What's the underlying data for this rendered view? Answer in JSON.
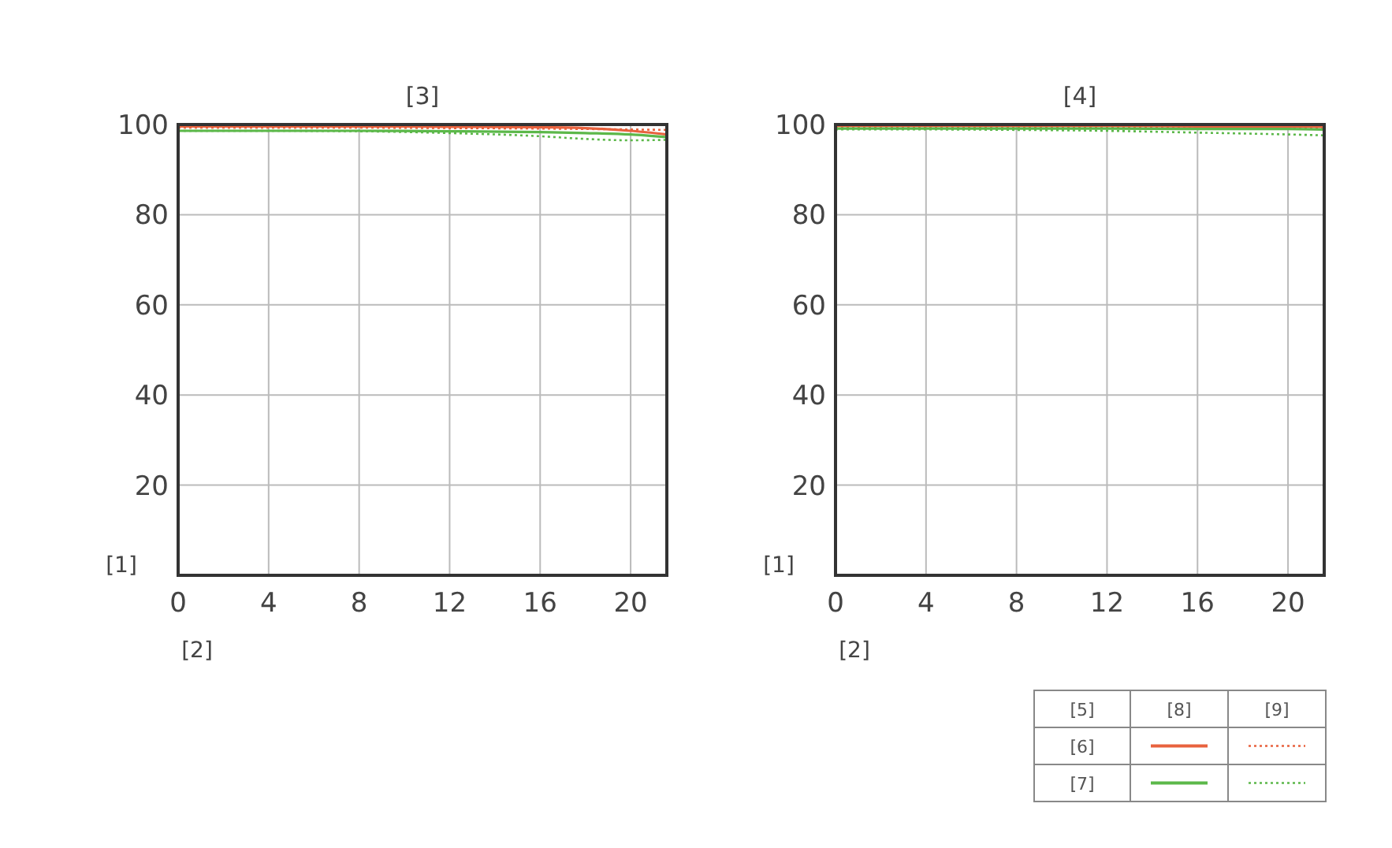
{
  "chart_data": [
    {
      "type": "line",
      "title": "[3]",
      "xlabel": "[2]",
      "ylabel": "[1]",
      "xlim": [
        0,
        21.6
      ],
      "ylim": [
        0,
        100
      ],
      "xticks": [
        0,
        4,
        8,
        12,
        16,
        20
      ],
      "yticks": [
        20,
        40,
        60,
        80,
        100
      ],
      "grid": true,
      "series": [
        {
          "color": "#e8623e",
          "line_style": "solid",
          "x": [
            0,
            4,
            8,
            12,
            16,
            18,
            20,
            21.6
          ],
          "values": [
            99.6,
            99.6,
            99.6,
            99.5,
            99.4,
            99.2,
            98.6,
            97.8
          ]
        },
        {
          "color": "#e8623e",
          "line_style": "dotted",
          "x": [
            0,
            4,
            8,
            12,
            16,
            18,
            20,
            21.6
          ],
          "values": [
            99.3,
            99.3,
            99.3,
            99.2,
            99.1,
            99,
            98.9,
            98.8
          ]
        },
        {
          "color": "#5cb84a",
          "line_style": "solid",
          "x": [
            0,
            4,
            8,
            12,
            16,
            18,
            20,
            21.6
          ],
          "values": [
            98.6,
            98.6,
            98.6,
            98.5,
            98.3,
            98.1,
            97.8,
            97.2
          ]
        },
        {
          "color": "#5cb84a",
          "line_style": "dotted",
          "x": [
            0,
            4,
            8,
            12,
            16,
            18,
            20,
            21.6
          ],
          "values": [
            98.6,
            98.6,
            98.5,
            98.1,
            97.4,
            96.8,
            96.5,
            96.6
          ]
        }
      ]
    },
    {
      "type": "line",
      "title": "[4]",
      "xlabel": "[2]",
      "ylabel": "[1]",
      "xlim": [
        0,
        21.6
      ],
      "ylim": [
        0,
        100
      ],
      "xticks": [
        0,
        4,
        8,
        12,
        16,
        20
      ],
      "yticks": [
        20,
        40,
        60,
        80,
        100
      ],
      "grid": true,
      "annotations": [
        "[5]",
        "[8]",
        "[9]",
        "[6]",
        "[7]"
      ],
      "series": [
        {
          "color": "#e8623e",
          "line_style": "solid",
          "x": [
            0,
            4,
            8,
            12,
            16,
            20,
            21.6
          ],
          "values": [
            99.7,
            99.7,
            99.7,
            99.7,
            99.6,
            99.6,
            99.5
          ]
        },
        {
          "color": "#e8623e",
          "line_style": "dotted",
          "x": [
            0,
            4,
            8,
            12,
            16,
            20,
            21.6
          ],
          "values": [
            99.5,
            99.5,
            99.5,
            99.4,
            99.4,
            99.3,
            99.3
          ]
        },
        {
          "color": "#5cb84a",
          "line_style": "solid",
          "x": [
            0,
            4,
            8,
            12,
            16,
            20,
            21.6
          ],
          "values": [
            99.1,
            99.1,
            99.1,
            99.1,
            99,
            99,
            98.9
          ]
        },
        {
          "color": "#5cb84a",
          "line_style": "dotted",
          "x": [
            0,
            4,
            8,
            12,
            16,
            20,
            21.6
          ],
          "values": [
            98.9,
            98.9,
            98.8,
            98.6,
            98.2,
            97.8,
            97.6
          ]
        }
      ]
    }
  ]
}
